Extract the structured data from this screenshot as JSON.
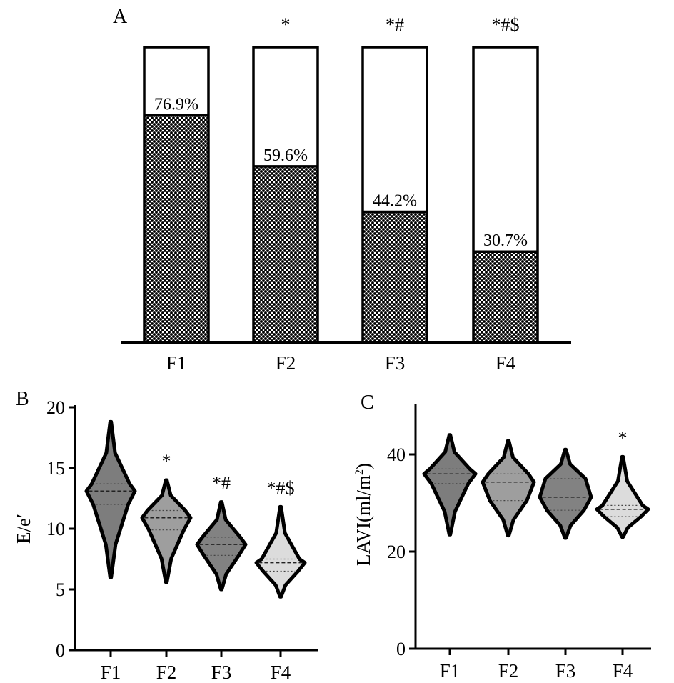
{
  "chart_data": [
    {
      "panel": "A",
      "type": "bar",
      "categories": [
        "F1",
        "F2",
        "F3",
        "F4"
      ],
      "values": [
        76.9,
        59.6,
        44.2,
        30.7
      ],
      "value_labels": [
        "76.9%",
        "59.6%",
        "44.2%",
        "30.7%"
      ],
      "significance": [
        "",
        "*",
        "*#",
        "*#$"
      ],
      "ylim": [
        0,
        100
      ],
      "stacked_to_100_percent": true,
      "filled_segment_pattern": "crosshatch"
    },
    {
      "panel": "B",
      "type": "violin",
      "categories": [
        "F1",
        "F2",
        "F3",
        "F4"
      ],
      "ylabel": "E/e′",
      "ylim": [
        0,
        20
      ],
      "yticks": [
        "0",
        "5",
        "10",
        "15",
        "20"
      ],
      "significance": [
        "",
        "*",
        "*#",
        "*#$"
      ],
      "series": [
        {
          "category": "F1",
          "min": 6.0,
          "max": 18.8,
          "q1": 12.0,
          "median": 13.1,
          "q3": 13.7,
          "color": "#7d7d7d"
        },
        {
          "category": "F2",
          "min": 5.6,
          "max": 14.0,
          "q1": 9.9,
          "median": 10.9,
          "q3": 11.5,
          "color": "#9e9e9e"
        },
        {
          "category": "F3",
          "min": 5.0,
          "max": 12.2,
          "q1": 7.8,
          "median": 8.7,
          "q3": 9.3,
          "color": "#828282"
        },
        {
          "category": "F4",
          "min": 4.4,
          "max": 11.8,
          "q1": 6.5,
          "median": 7.2,
          "q3": 7.5,
          "color": "#dcdcdc"
        }
      ]
    },
    {
      "panel": "C",
      "type": "violin",
      "categories": [
        "F1",
        "F2",
        "F3",
        "F4"
      ],
      "ylabel": "LAVI(ml/m",
      "ylabel_superscript": "2",
      "ylabel_close": ")",
      "ylim": [
        0,
        50
      ],
      "yticks": [
        "0",
        "20",
        "40"
      ],
      "significance": [
        "",
        "",
        "",
        "*"
      ],
      "series": [
        {
          "category": "F1",
          "min": 23.5,
          "max": 44.0,
          "q1": 34.0,
          "median": 36.0,
          "q3": 37.0,
          "color": "#7d7d7d"
        },
        {
          "category": "F2",
          "min": 23.3,
          "max": 42.8,
          "q1": 30.5,
          "median": 34.3,
          "q3": 36.0,
          "color": "#9e9e9e"
        },
        {
          "category": "F3",
          "min": 22.8,
          "max": 41.0,
          "q1": 28.5,
          "median": 31.2,
          "q3": 35.0,
          "color": "#828282"
        },
        {
          "category": "F4",
          "min": 23.0,
          "max": 39.5,
          "q1": 27.2,
          "median": 28.7,
          "q3": 29.5,
          "color": "#dcdcdc"
        }
      ]
    }
  ],
  "panel_labels": {
    "a": "A",
    "b": "B",
    "c": "C"
  }
}
